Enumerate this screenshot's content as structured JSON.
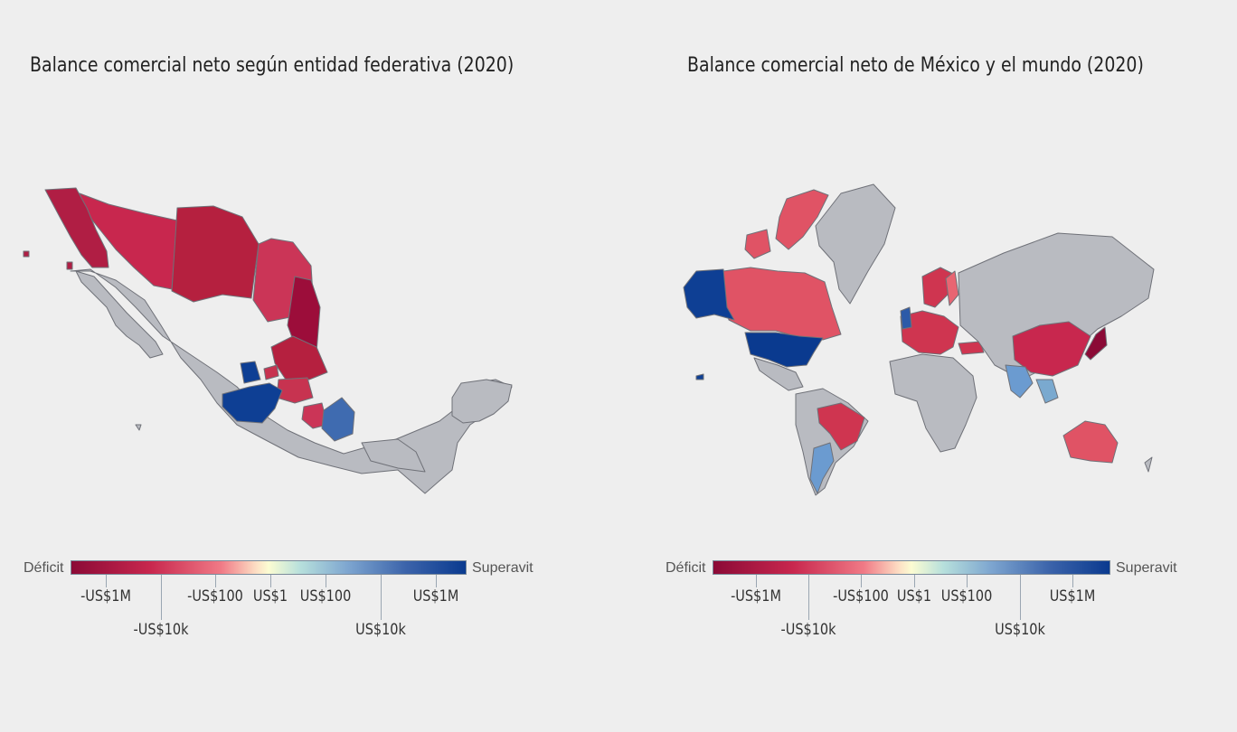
{
  "left_panel": {
    "title": "Balance comercial neto según entidad federativa (2020)",
    "legend": {
      "low_label": "Déficit",
      "high_label": "Superavit",
      "ticks": [
        {
          "label": "-US$1M",
          "row": 1
        },
        {
          "label": "-US$10k",
          "row": 2
        },
        {
          "label": "-US$100",
          "row": 1
        },
        {
          "label": "US$1",
          "row": 1
        },
        {
          "label": "US$100",
          "row": 1
        },
        {
          "label": "US$10k",
          "row": 2
        },
        {
          "label": "US$1M",
          "row": 1
        }
      ]
    }
  },
  "right_panel": {
    "title": "Balance comercial neto de México y el mundo (2020)",
    "legend": {
      "low_label": "Déficit",
      "high_label": "Superavit",
      "ticks": [
        {
          "label": "-US$1M",
          "row": 1
        },
        {
          "label": "-US$10k",
          "row": 2
        },
        {
          "label": "-US$100",
          "row": 1
        },
        {
          "label": "US$1",
          "row": 1
        },
        {
          "label": "US$100",
          "row": 1
        },
        {
          "label": "US$10k",
          "row": 2
        },
        {
          "label": "US$1M",
          "row": 1
        }
      ]
    }
  },
  "colors": {
    "background": "#eeeeee",
    "no_data": "#b9bbc1",
    "deficit_strong": "#8b0a36",
    "deficit": "#c8274e",
    "deficit_light": "#e05365",
    "surplus_light": "#6b9bd0",
    "surplus_strong": "#0a3a8f"
  }
}
